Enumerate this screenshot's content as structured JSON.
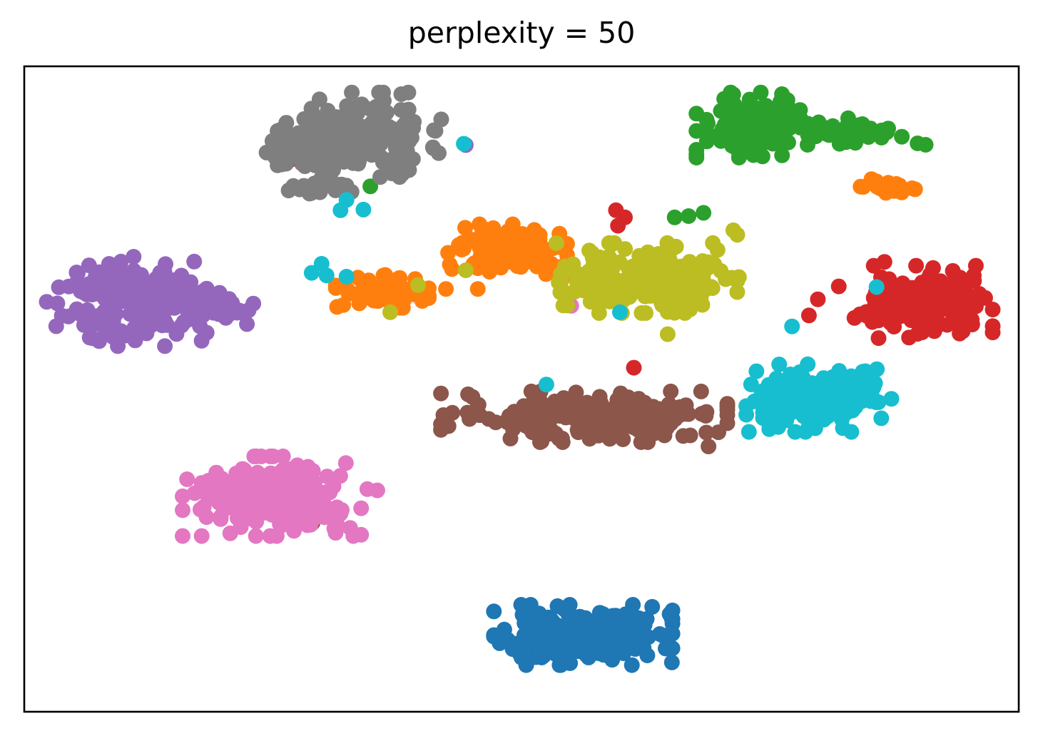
{
  "chart_data": {
    "type": "scatter",
    "title": "perplexity = 50",
    "xlabel": "",
    "ylabel": "",
    "xlim": [
      0,
      100
    ],
    "ylim": [
      0,
      100
    ],
    "axis_ticks": false,
    "grid": false,
    "legend": "none",
    "marker_size": 11,
    "series": [
      {
        "color": "#1f77b4",
        "clusters": [
          {
            "cx": 56.2,
            "cy": 11.9,
            "sx": 4.8,
            "sy": 2.5,
            "n": 190,
            "seed": 11
          },
          {
            "cx": 53.2,
            "cy": 11.2,
            "sx": 2.2,
            "sy": 1.6,
            "n": 40,
            "seed": 12
          }
        ]
      },
      {
        "color": "#ff7f0e",
        "clusters": [
          {
            "cx": 48.6,
            "cy": 71.6,
            "sx": 3.2,
            "sy": 2.1,
            "n": 130,
            "seed": 21
          },
          {
            "cx": 36.0,
            "cy": 65.2,
            "sx": 2.5,
            "sy": 1.4,
            "n": 70,
            "seed": 22
          },
          {
            "cx": 86.4,
            "cy": 81.3,
            "sx": 1.7,
            "sy": 0.7,
            "n": 25,
            "seed": 23
          }
        ],
        "points": [
          [
            42.4,
            65.5
          ],
          [
            45.6,
            65.5
          ],
          [
            43.0,
            68.6
          ]
        ]
      },
      {
        "color": "#2ca02c",
        "clusters": [
          {
            "cx": 73.2,
            "cy": 90.9,
            "sx": 3.0,
            "sy": 2.7,
            "n": 150,
            "seed": 31
          },
          {
            "cx": 82.6,
            "cy": 89.9,
            "sx": 4.3,
            "sy": 1.1,
            "n": 50,
            "seed": 32
          }
        ],
        "points": [
          [
            34.8,
            81.4
          ],
          [
            65.4,
            76.6
          ],
          [
            66.8,
            76.8
          ],
          [
            68.3,
            77.3
          ]
        ]
      },
      {
        "color": "#d62728",
        "clusters": [
          {
            "cx": 91.4,
            "cy": 63.5,
            "sx": 3.2,
            "sy": 3.0,
            "n": 170,
            "seed": 41
          },
          {
            "cx": 86.3,
            "cy": 61.7,
            "sx": 1.8,
            "sy": 0.7,
            "n": 30,
            "seed": 42
          }
        ],
        "points": [
          [
            79.8,
            63.9
          ],
          [
            81.9,
            65.9
          ],
          [
            78.9,
            61.4
          ],
          [
            59.5,
            77.7
          ],
          [
            60.4,
            76.6
          ],
          [
            59.7,
            75.3
          ],
          [
            61.3,
            53.3
          ],
          [
            26.9,
            85.6
          ],
          [
            86.5,
            69.7
          ]
        ]
      },
      {
        "color": "#9467bd",
        "clusters": [
          {
            "cx": 10.3,
            "cy": 63.2,
            "sx": 4.3,
            "sy": 3.5,
            "n": 190,
            "seed": 51
          },
          {
            "cx": 19.9,
            "cy": 62.4,
            "sx": 2.1,
            "sy": 1.6,
            "n": 40,
            "seed": 52
          }
        ],
        "points": [
          [
            44.4,
            87.8
          ],
          [
            11.0,
            70.5
          ],
          [
            14.1,
            68.1
          ]
        ]
      },
      {
        "color": "#8c564b",
        "clusters": [
          {
            "cx": 56.3,
            "cy": 45.7,
            "sx": 7.7,
            "sy": 2.1,
            "n": 230,
            "seed": 61
          }
        ],
        "points": [
          [
            29.0,
            29.3
          ],
          [
            68.8,
            41.1
          ],
          [
            69.8,
            43.3
          ]
        ]
      },
      {
        "color": "#e377c2",
        "clusters": [
          {
            "cx": 24.9,
            "cy": 33.4,
            "sx": 4.8,
            "sy": 3.3,
            "n": 230,
            "seed": 71
          }
        ],
        "points": [
          [
            35.5,
            34.3
          ],
          [
            34.5,
            34.5
          ],
          [
            55.0,
            62.9
          ]
        ]
      },
      {
        "color": "#7f7f7f",
        "clusters": [
          {
            "cx": 33.7,
            "cy": 89.4,
            "sx": 4.4,
            "sy": 3.5,
            "n": 170,
            "seed": 81
          },
          {
            "cx": 27.3,
            "cy": 86.6,
            "sx": 2.6,
            "sy": 1.3,
            "n": 40,
            "seed": 82
          },
          {
            "cx": 29.8,
            "cy": 81.1,
            "sx": 1.8,
            "sy": 0.8,
            "n": 20,
            "seed": 83
          }
        ]
      },
      {
        "color": "#bcbd22",
        "clusters": [
          {
            "cx": 63.3,
            "cy": 67.2,
            "sx": 5.0,
            "sy": 2.9,
            "n": 210,
            "seed": 91
          },
          {
            "cx": 57.1,
            "cy": 66.5,
            "sx": 1.8,
            "sy": 1.9,
            "n": 40,
            "seed": 92
          }
        ],
        "points": [
          [
            71.3,
            74.6
          ],
          [
            71.7,
            73.9
          ],
          [
            71.7,
            66.8
          ],
          [
            53.5,
            72.6
          ],
          [
            44.4,
            68.4
          ],
          [
            36.8,
            61.9
          ],
          [
            39.6,
            66.1
          ],
          [
            53.9,
            65.0
          ],
          [
            64.7,
            58.5
          ]
        ]
      },
      {
        "color": "#17becf",
        "clusters": [
          {
            "cx": 79.9,
            "cy": 48.6,
            "sx": 3.9,
            "sy": 2.8,
            "n": 170,
            "seed": 101
          }
        ],
        "points": [
          [
            29.9,
            69.4
          ],
          [
            28.9,
            68.0
          ],
          [
            30.4,
            67.6
          ],
          [
            32.4,
            67.4
          ],
          [
            32.4,
            79.3
          ],
          [
            31.8,
            77.7
          ],
          [
            34.1,
            77.8
          ],
          [
            44.2,
            88.0
          ],
          [
            52.5,
            50.7
          ],
          [
            77.2,
            59.7
          ],
          [
            85.7,
            65.8
          ],
          [
            59.9,
            61.9
          ]
        ]
      }
    ]
  }
}
